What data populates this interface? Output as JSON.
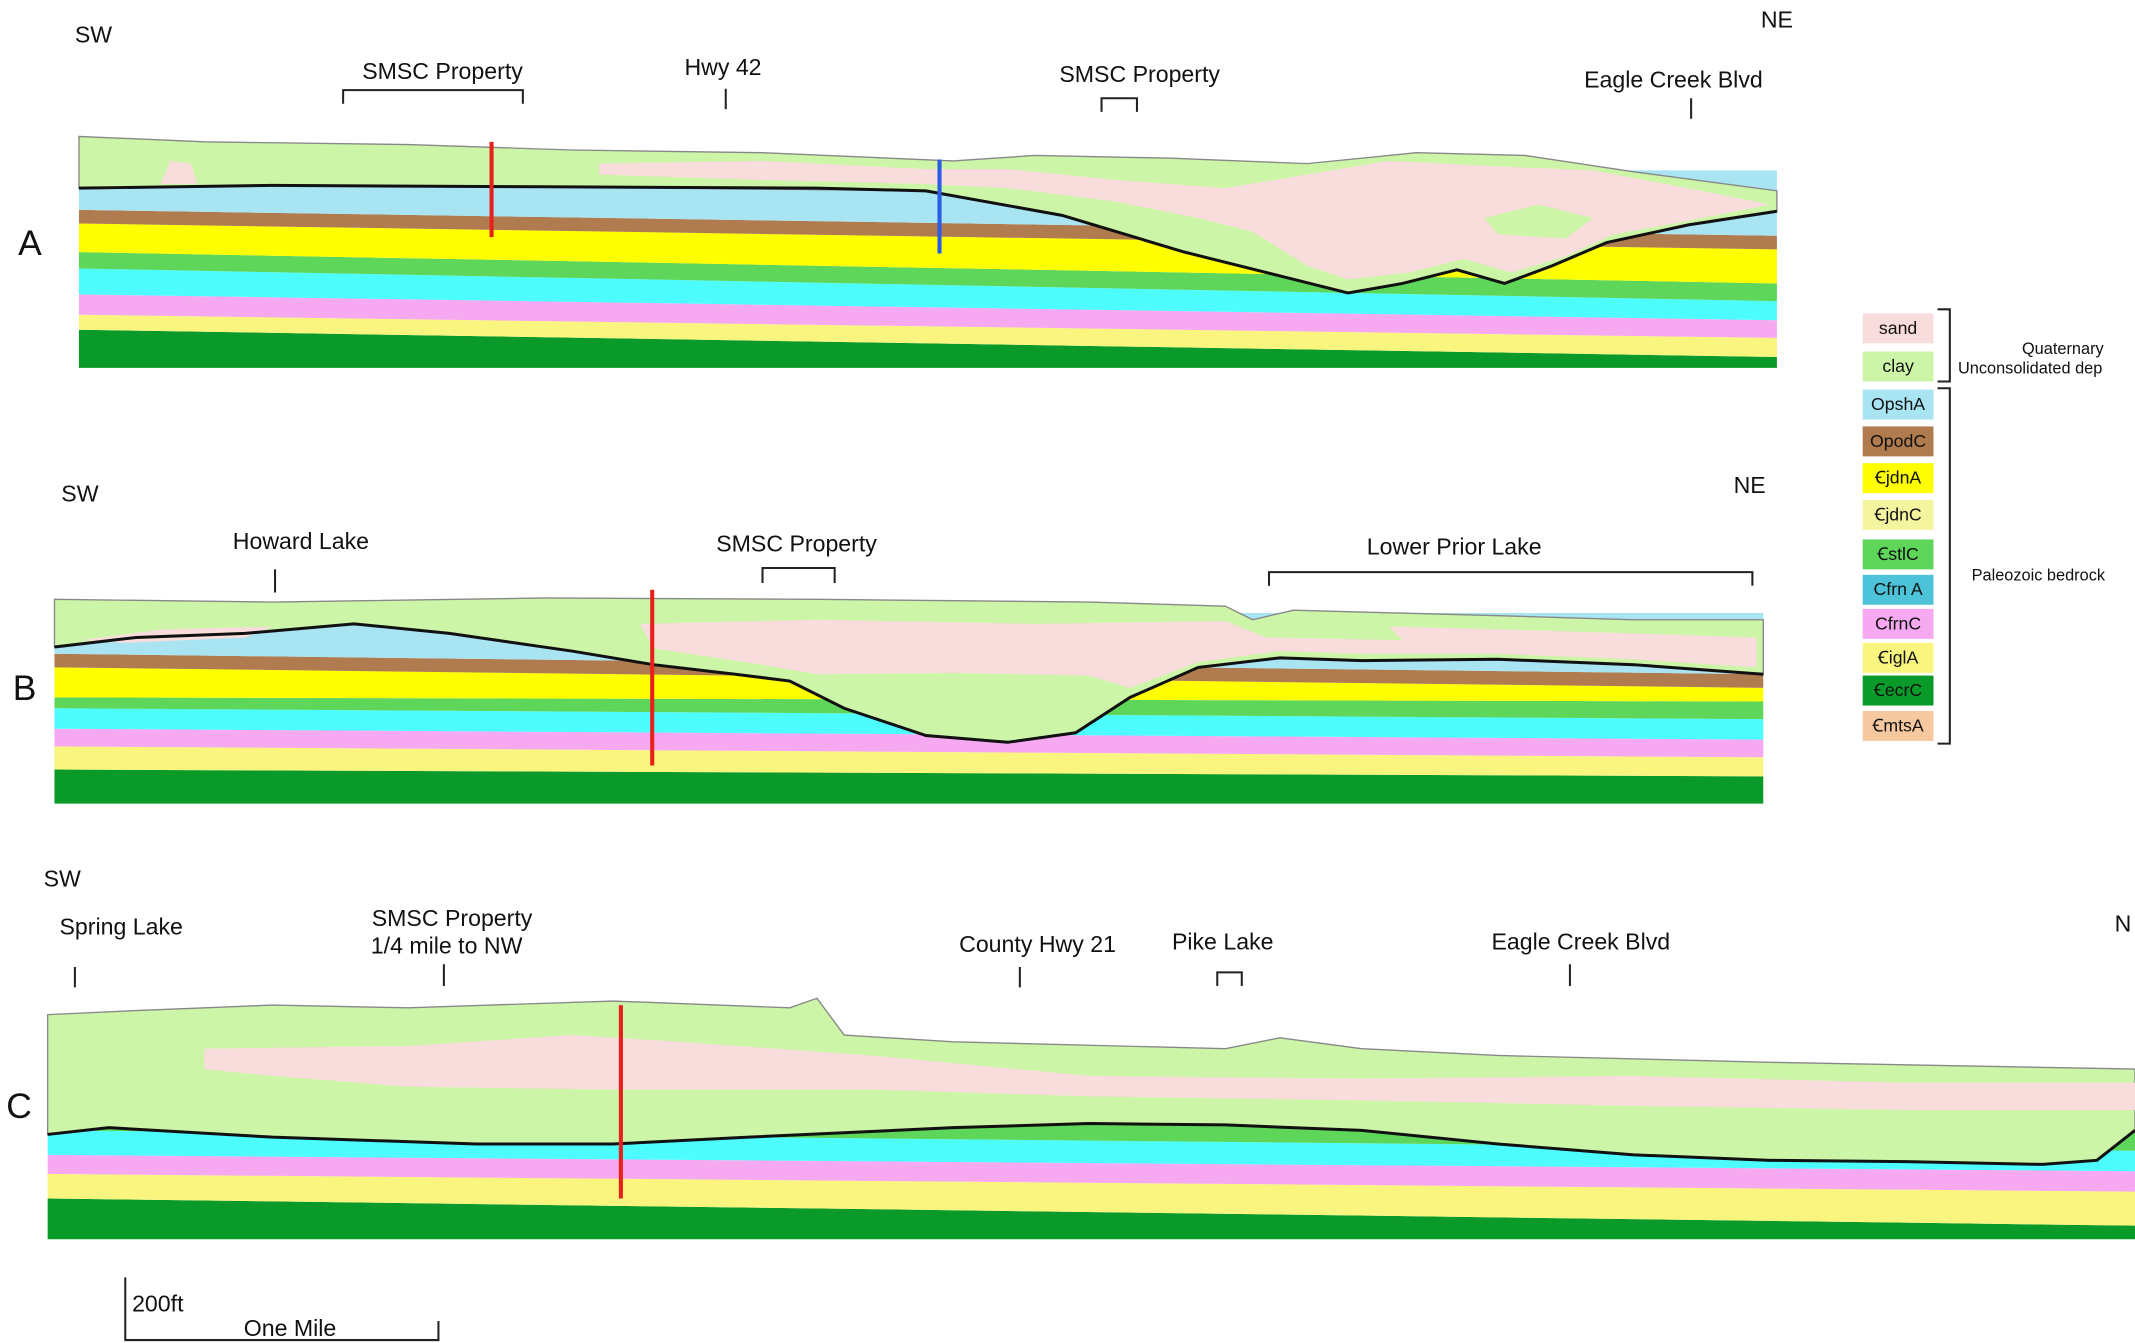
{
  "sections": [
    {
      "label": "A",
      "left": "SW",
      "right": "NE",
      "landmarks": [
        {
          "lines": [
            "SMSC Property"
          ]
        },
        {
          "lines": [
            "Hwy 42"
          ]
        },
        {
          "lines": [
            "SMSC Property"
          ]
        },
        {
          "lines": [
            "Eagle Creek Blvd"
          ]
        }
      ]
    },
    {
      "label": "B",
      "left": "SW",
      "right": "NE",
      "landmarks": [
        {
          "lines": [
            "Howard Lake"
          ]
        },
        {
          "lines": [
            "SMSC Property"
          ]
        },
        {
          "lines": [
            "Lower Prior Lake"
          ]
        }
      ]
    },
    {
      "label": "C",
      "left": "SW",
      "right": "N",
      "landmarks": [
        {
          "lines": [
            "Spring Lake"
          ]
        },
        {
          "lines": [
            "SMSC Property",
            "1/4 mile to NW"
          ]
        },
        {
          "lines": [
            "County Hwy 21"
          ]
        },
        {
          "lines": [
            "Pike Lake"
          ]
        },
        {
          "lines": [
            "Eagle Creek Blvd"
          ]
        }
      ]
    }
  ],
  "legend": {
    "items": [
      {
        "label": "sand"
      },
      {
        "label": "clay"
      },
      {
        "label": "OpshA"
      },
      {
        "label": "OpodC"
      },
      {
        "label": "ꞒjdnA"
      },
      {
        "label": "ꞒjdnC"
      },
      {
        "label": "ꞒstlC"
      },
      {
        "label": "Cfrn A"
      },
      {
        "label": "CfrnC"
      },
      {
        "label": "ꞒiglA"
      },
      {
        "label": "ꞒecrC"
      },
      {
        "label": "ꞒmtsA"
      }
    ],
    "groups": [
      {
        "lines": [
          "Quaternary",
          "Unconsolidated dep"
        ]
      },
      {
        "lines": [
          "Paleozoic bedrock"
        ]
      }
    ]
  },
  "scale": {
    "height": "200ft",
    "length": "One Mile"
  }
}
